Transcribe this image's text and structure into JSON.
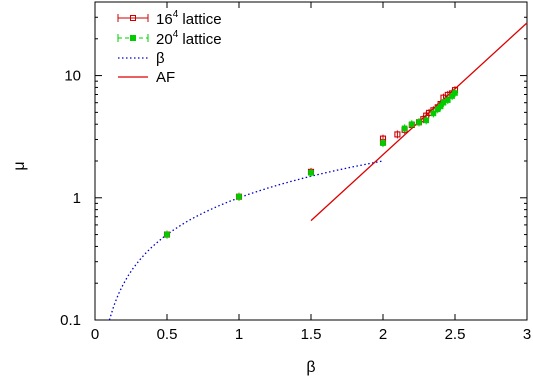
{
  "chart_data": {
    "type": "scatter",
    "xlabel": "β",
    "ylabel": "μ",
    "xlim": [
      0,
      3
    ],
    "ylim": [
      0.1,
      40
    ],
    "ylog": true,
    "grid": false,
    "legend_position": "top-left",
    "xticks": [
      "0",
      "0.5",
      "1",
      "1.5",
      "2",
      "2.5",
      "3"
    ],
    "xtick_values": [
      0,
      0.5,
      1,
      1.5,
      2,
      2.5,
      3
    ],
    "yticks": [
      "0.1",
      "1",
      "10"
    ],
    "ytick_values": [
      0.1,
      1,
      10
    ],
    "series": [
      {
        "name": "16",
        "name_sup": "4",
        "name_suffix": " lattice",
        "kind": "points-errorbars",
        "marker": "square-open",
        "color": "#cc0000",
        "x": [
          0.5,
          1.0,
          1.5,
          2.0,
          2.0,
          2.1,
          2.15,
          2.2,
          2.25,
          2.28,
          2.3,
          2.32,
          2.35,
          2.38,
          2.4,
          2.42,
          2.45,
          2.48,
          2.5
        ],
        "y": [
          0.5,
          1.02,
          1.63,
          2.85,
          3.05,
          3.3,
          3.6,
          3.95,
          4.15,
          4.4,
          4.7,
          4.95,
          5.2,
          5.5,
          5.85,
          6.6,
          6.95,
          7.15,
          7.6
        ]
      },
      {
        "name": "20",
        "name_sup": "4",
        "name_suffix": " lattice",
        "kind": "points-errorbars",
        "marker": "square-filled",
        "color": "#00cc00",
        "x": [
          0.5,
          1.0,
          1.5,
          2.0,
          2.15,
          2.2,
          2.25,
          2.3,
          2.35,
          2.38,
          2.4,
          2.42,
          2.45,
          2.48,
          2.5
        ],
        "y": [
          0.5,
          1.02,
          1.6,
          2.8,
          3.7,
          4.0,
          4.15,
          4.3,
          4.9,
          5.3,
          5.6,
          6.0,
          6.3,
          6.8,
          7.2
        ]
      },
      {
        "name": "β",
        "kind": "curve",
        "style": "dotted",
        "color": "#0000cc",
        "x_range": [
          0.1,
          2.0
        ],
        "samples": 60
      },
      {
        "name": "AF",
        "kind": "line",
        "style": "solid",
        "color": "#dd0000",
        "x": [
          1.5,
          3.0
        ],
        "y": [
          0.65,
          27.0
        ]
      }
    ]
  }
}
